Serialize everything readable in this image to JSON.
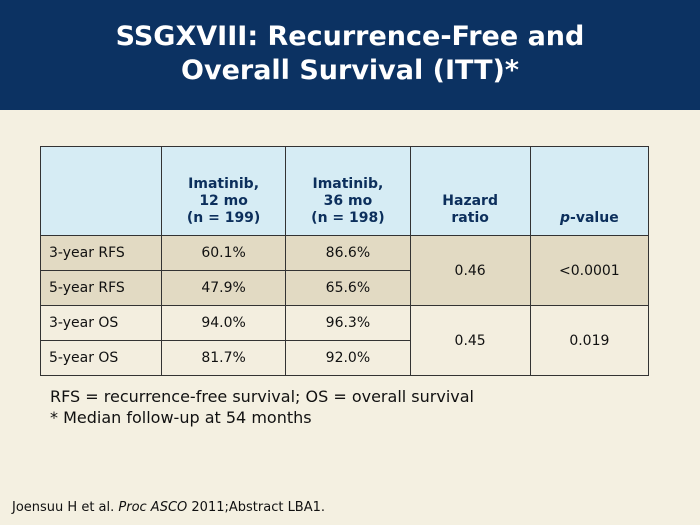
{
  "header": {
    "title_lines": [
      "SSGXVIII: Recurrence-Free and",
      "Overall Survival (ITT)*"
    ]
  },
  "table": {
    "headers": [
      {
        "lines": [
          "Imatinib,",
          "12 mo",
          "(n = 199)"
        ]
      },
      {
        "lines": [
          "Imatinib,",
          "36 mo",
          "(n = 198)"
        ]
      },
      {
        "lines": [
          "Hazard",
          "ratio"
        ]
      },
      {
        "parts": [
          {
            "text": "p",
            "style": "italic"
          },
          {
            "text": "-value",
            "style": "normal"
          }
        ]
      }
    ],
    "groups": [
      {
        "rows": [
          {
            "label": "3-year RFS",
            "imatinib_12": "60.1%",
            "imatinib_36": "86.6%"
          },
          {
            "label": "5-year RFS",
            "imatinib_12": "47.9%",
            "imatinib_36": "65.6%"
          }
        ],
        "hazard_ratio": "0.46",
        "p_value": "<0.0001",
        "color": "#e2dac3"
      },
      {
        "rows": [
          {
            "label": "3-year OS",
            "imatinib_12": "94.0%",
            "imatinib_36": "96.3%"
          },
          {
            "label": "5-year OS",
            "imatinib_12": "81.7%",
            "imatinib_36": "92.0%"
          }
        ],
        "hazard_ratio": "0.45",
        "p_value": "0.019",
        "color": "#f3eedf"
      }
    ]
  },
  "notes": [
    "RFS = recurrence-free survival; OS = overall survival",
    "* Median follow-up at 54 months"
  ],
  "citation": {
    "parts": [
      {
        "text": "Joensuu H et al. ",
        "style": "normal"
      },
      {
        "text": "Proc ASCO",
        "style": "italic"
      },
      {
        "text": " 2011;Abstract LBA1.",
        "style": "normal"
      }
    ]
  }
}
